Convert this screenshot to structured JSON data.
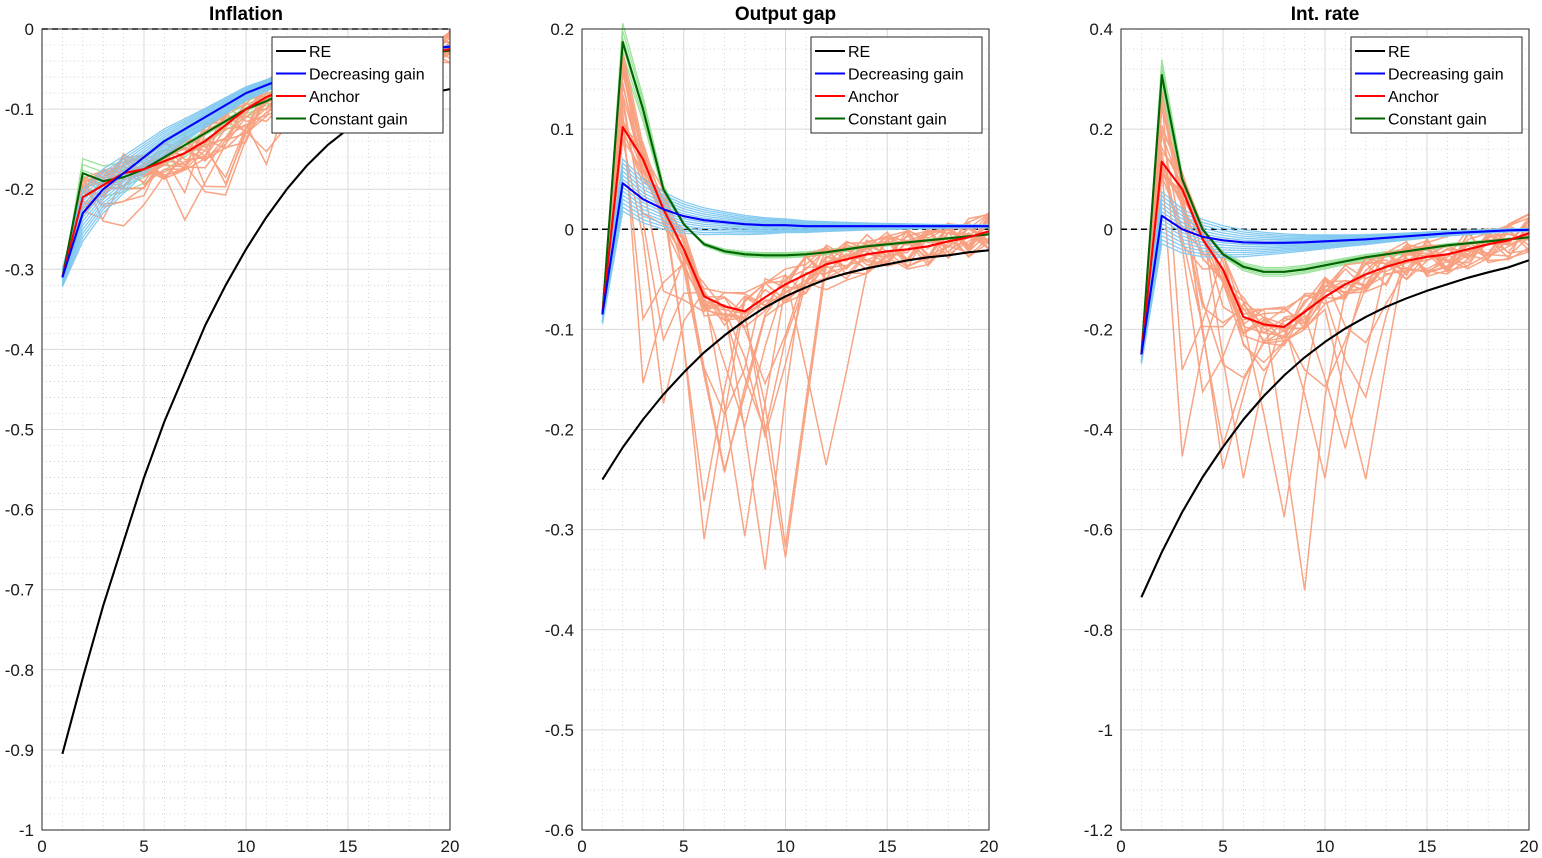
{
  "colors": {
    "re": "#000000",
    "decreasing_gain": "#0000ff",
    "anchor": "#ff0000",
    "constant_gain": "#006400",
    "anchor_paths": "#f8a080",
    "decreasing_paths": "#80c8f0",
    "constant_paths": "#90e090",
    "grid_major": "#d9d9d9",
    "grid_minor": "#c8c8c8",
    "axis": "#262626"
  },
  "chart_data": [
    {
      "type": "line",
      "title": "Inflation",
      "xlim": [
        0,
        20
      ],
      "ylim": [
        -1,
        0
      ],
      "xticks": [
        "0",
        "5",
        "10",
        "15",
        "20"
      ],
      "yticks": [
        "-1",
        "-0.9",
        "-0.8",
        "-0.7",
        "-0.6",
        "-0.5",
        "-0.4",
        "-0.3",
        "-0.2",
        "-0.1",
        "0"
      ],
      "legend": {
        "position": "top-right",
        "entries": [
          "RE",
          "Decreasing gain",
          "Anchor",
          "Constant gain"
        ]
      },
      "zero_line": true,
      "x": [
        1,
        2,
        3,
        4,
        5,
        6,
        7,
        8,
        9,
        10,
        11,
        12,
        13,
        14,
        15,
        16,
        17,
        18,
        19,
        20
      ],
      "series": [
        {
          "key": "re",
          "values": [
            -0.905,
            -0.81,
            -0.72,
            -0.64,
            -0.56,
            -0.49,
            -0.43,
            -0.37,
            -0.32,
            -0.275,
            -0.235,
            -0.2,
            -0.17,
            -0.145,
            -0.125,
            -0.11,
            -0.1,
            -0.09,
            -0.08,
            -0.075
          ]
        },
        {
          "key": "decreasing_gain",
          "values": [
            -0.31,
            -0.23,
            -0.2,
            -0.18,
            -0.16,
            -0.14,
            -0.125,
            -0.11,
            -0.095,
            -0.08,
            -0.07,
            -0.06,
            -0.05,
            -0.045,
            -0.04,
            -0.035,
            -0.03,
            -0.027,
            -0.025,
            -0.022
          ]
        },
        {
          "key": "anchor",
          "values": [
            -0.31,
            -0.21,
            -0.195,
            -0.18,
            -0.175,
            -0.165,
            -0.155,
            -0.14,
            -0.12,
            -0.1,
            -0.085,
            -0.075,
            -0.065,
            -0.055,
            -0.05,
            -0.045,
            -0.04,
            -0.035,
            -0.03,
            -0.025
          ]
        },
        {
          "key": "constant_gain",
          "values": [
            -0.31,
            -0.18,
            -0.19,
            -0.185,
            -0.175,
            -0.16,
            -0.145,
            -0.13,
            -0.115,
            -0.1,
            -0.09,
            -0.078,
            -0.068,
            -0.06,
            -0.053,
            -0.047,
            -0.04,
            -0.035,
            -0.03,
            -0.027
          ]
        }
      ]
    },
    {
      "type": "line",
      "title": "Output gap",
      "xlim": [
        0,
        20
      ],
      "ylim": [
        -0.6,
        0.2
      ],
      "xticks": [
        "0",
        "5",
        "10",
        "15",
        "20"
      ],
      "yticks": [
        "-0.6",
        "-0.5",
        "-0.4",
        "-0.3",
        "-0.2",
        "-0.1",
        "0",
        "0.1",
        "0.2"
      ],
      "legend": {
        "position": "top-right",
        "entries": [
          "RE",
          "Decreasing gain",
          "Anchor",
          "Constant gain"
        ]
      },
      "zero_line": true,
      "x": [
        1,
        2,
        3,
        4,
        5,
        6,
        7,
        8,
        9,
        10,
        11,
        12,
        13,
        14,
        15,
        16,
        17,
        18,
        19,
        20
      ],
      "series": [
        {
          "key": "re",
          "values": [
            -0.25,
            -0.218,
            -0.19,
            -0.165,
            -0.143,
            -0.123,
            -0.106,
            -0.091,
            -0.078,
            -0.067,
            -0.058,
            -0.05,
            -0.044,
            -0.039,
            -0.035,
            -0.031,
            -0.028,
            -0.026,
            -0.023,
            -0.021
          ]
        },
        {
          "key": "decreasing_gain",
          "values": [
            -0.085,
            0.046,
            0.03,
            0.02,
            0.013,
            0.009,
            0.007,
            0.005,
            0.004,
            0.004,
            0.003,
            0.003,
            0.003,
            0.003,
            0.003,
            0.003,
            0.003,
            0.003,
            0.003,
            0.003
          ]
        },
        {
          "key": "anchor",
          "values": [
            -0.085,
            0.102,
            0.07,
            0.02,
            -0.02,
            -0.067,
            -0.077,
            -0.082,
            -0.068,
            -0.055,
            -0.045,
            -0.035,
            -0.03,
            -0.025,
            -0.022,
            -0.02,
            -0.017,
            -0.012,
            -0.008,
            -0.002
          ]
        },
        {
          "key": "constant_gain",
          "values": [
            -0.085,
            0.187,
            0.12,
            0.04,
            0.005,
            -0.015,
            -0.022,
            -0.025,
            -0.026,
            -0.026,
            -0.025,
            -0.023,
            -0.02,
            -0.017,
            -0.015,
            -0.013,
            -0.011,
            -0.009,
            -0.007,
            -0.005
          ]
        }
      ]
    },
    {
      "type": "line",
      "title": "Int. rate",
      "xlim": [
        0,
        20
      ],
      "ylim": [
        -1.2,
        0.4
      ],
      "xticks": [
        "0",
        "5",
        "10",
        "15",
        "20"
      ],
      "yticks": [
        "-1.2",
        "-1",
        "-0.8",
        "-0.6",
        "-0.4",
        "-0.2",
        "0",
        "0.2",
        "0.4"
      ],
      "legend": {
        "position": "top-right",
        "entries": [
          "RE",
          "Decreasing gain",
          "Anchor",
          "Constant gain"
        ]
      },
      "zero_line": true,
      "x": [
        1,
        2,
        3,
        4,
        5,
        6,
        7,
        8,
        9,
        10,
        11,
        12,
        13,
        14,
        15,
        16,
        17,
        18,
        19,
        20
      ],
      "series": [
        {
          "key": "re",
          "values": [
            -0.735,
            -0.645,
            -0.565,
            -0.495,
            -0.435,
            -0.38,
            -0.333,
            -0.292,
            -0.256,
            -0.225,
            -0.198,
            -0.175,
            -0.155,
            -0.138,
            -0.123,
            -0.11,
            -0.097,
            -0.086,
            -0.076,
            -0.062
          ]
        },
        {
          "key": "decreasing_gain",
          "values": [
            -0.25,
            0.027,
            0.0,
            -0.015,
            -0.022,
            -0.026,
            -0.027,
            -0.027,
            -0.026,
            -0.024,
            -0.022,
            -0.02,
            -0.017,
            -0.014,
            -0.011,
            -0.008,
            -0.006,
            -0.004,
            -0.002,
            -0.001
          ]
        },
        {
          "key": "anchor",
          "values": [
            -0.25,
            0.135,
            0.08,
            -0.02,
            -0.08,
            -0.175,
            -0.19,
            -0.195,
            -0.165,
            -0.135,
            -0.11,
            -0.09,
            -0.075,
            -0.063,
            -0.055,
            -0.05,
            -0.04,
            -0.03,
            -0.022,
            -0.008
          ]
        },
        {
          "key": "constant_gain",
          "values": [
            -0.25,
            0.308,
            0.1,
            0.0,
            -0.05,
            -0.075,
            -0.085,
            -0.085,
            -0.08,
            -0.072,
            -0.064,
            -0.056,
            -0.05,
            -0.044,
            -0.038,
            -0.032,
            -0.028,
            -0.024,
            -0.02,
            -0.016
          ]
        }
      ]
    }
  ]
}
